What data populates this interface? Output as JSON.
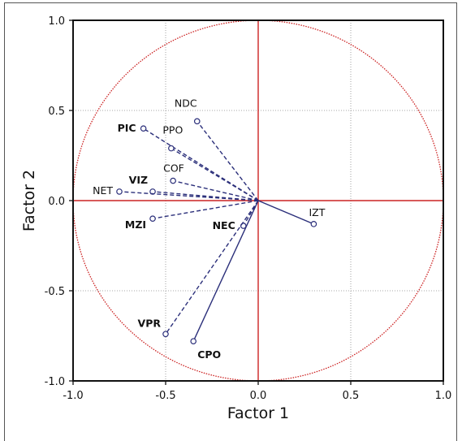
{
  "chart_data": {
    "type": "scatter",
    "title": "",
    "xlabel": "Factor 1",
    "ylabel": "Factor 2",
    "xlim": [
      -1.0,
      1.0
    ],
    "ylim": [
      -1.0,
      1.0
    ],
    "xticks": [
      "-1.0",
      "-0.5",
      "0.0",
      "0.5",
      "1.0"
    ],
    "yticks": [
      "1.0",
      "0.5",
      "0.0",
      "-0.5",
      "-1.0"
    ],
    "grid": true,
    "unit_circle": true,
    "colors": {
      "circle": "#cc2222",
      "axes_cross": "#cc2222",
      "vectors": "#2b2f7a",
      "grid": "#8a8a8a"
    },
    "points": [
      {
        "label": "NDC",
        "x": -0.33,
        "y": 0.44,
        "bold": false,
        "line": "dashed"
      },
      {
        "label": "PIC",
        "x": -0.62,
        "y": 0.4,
        "bold": true,
        "line": "dashed"
      },
      {
        "label": "PPO",
        "x": -0.47,
        "y": 0.29,
        "bold": false,
        "line": "dashed"
      },
      {
        "label": "COF",
        "x": -0.46,
        "y": 0.11,
        "bold": false,
        "line": "dashed"
      },
      {
        "label": "VIZ",
        "x": -0.57,
        "y": 0.05,
        "bold": true,
        "line": "dashed"
      },
      {
        "label": "NET",
        "x": -0.75,
        "y": 0.05,
        "bold": false,
        "line": "dashed"
      },
      {
        "label": "MZI",
        "x": -0.57,
        "y": -0.1,
        "bold": true,
        "line": "dashed"
      },
      {
        "label": "NEC",
        "x": -0.08,
        "y": -0.14,
        "bold": true,
        "line": "dashed"
      },
      {
        "label": "VPR",
        "x": -0.5,
        "y": -0.74,
        "bold": true,
        "line": "dashed"
      },
      {
        "label": "CPO",
        "x": -0.35,
        "y": -0.78,
        "bold": true,
        "line": "solid"
      },
      {
        "label": "IZT",
        "x": 0.3,
        "y": -0.13,
        "bold": false,
        "line": "solid"
      }
    ]
  }
}
